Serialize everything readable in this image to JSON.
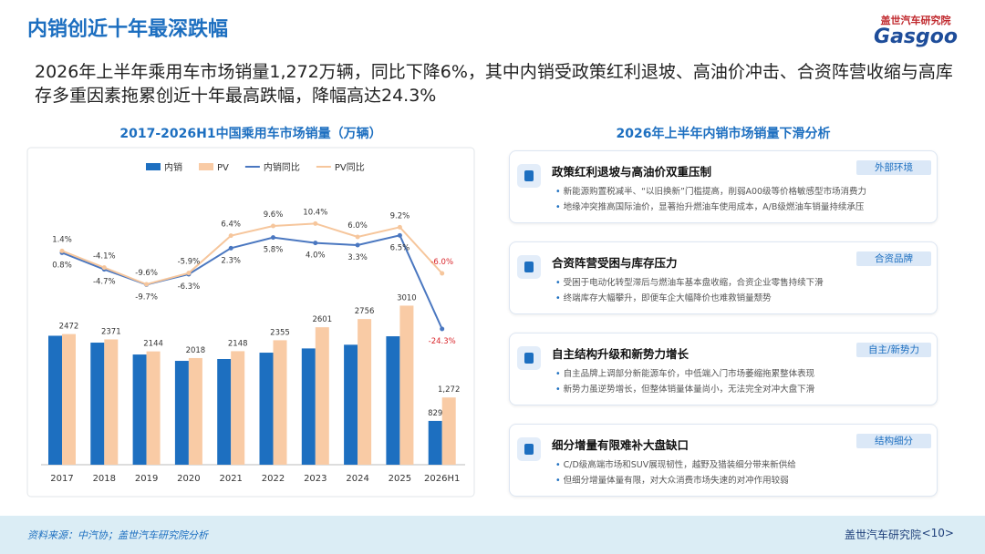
{
  "header": {
    "title": "内销创近十年最深跌幅",
    "logo_cn": "盖世汽车研究院",
    "logo_en": "Gasgoo",
    "summary": "2026年上半年乘用车市场销量1,272万辆，同比下降6%，其中内销受政策红利退坡、高油价冲击、合资阵营收缩与高库存多重因素拖累创近十年最高跌幅，降幅高达24.3%"
  },
  "chart_data": {
    "type": "bar-line",
    "title": "2017-2026H1中国乘用车市场销量（万辆）",
    "categories": [
      "2017",
      "2018",
      "2019",
      "2020",
      "2021",
      "2022",
      "2023",
      "2024",
      "2025",
      "2026H1"
    ],
    "ylim": [
      0,
      3500
    ],
    "y2lim": [
      -30,
      24
    ],
    "series": [
      {
        "name": "内销",
        "color": "#1d6fc0",
        "values": [
          2440,
          2310,
          2085,
          1965,
          2000,
          2120,
          2200,
          2270,
          2430,
          829
        ],
        "value_labels": [
          null,
          null,
          null,
          null,
          null,
          null,
          null,
          null,
          null,
          "829"
        ]
      },
      {
        "name": "PV",
        "color": "#f9cba5",
        "values": [
          2472,
          2371,
          2144,
          2018,
          2148,
          2355,
          2601,
          2756,
          3010,
          1272
        ],
        "value_labels": [
          "2472",
          "2371",
          "2144",
          "2018",
          "2148",
          "2355",
          "2601",
          "2756",
          "3010",
          "1,272"
        ]
      },
      {
        "name": "内销同比",
        "color": "#4a77c0",
        "axis": "y2",
        "values": [
          0.8,
          -4.7,
          -9.7,
          -6.3,
          2.3,
          5.8,
          4.0,
          3.3,
          6.5,
          -24.3
        ],
        "value_labels": [
          "0.8%",
          "-4.7%",
          "-9.7%",
          "-6.3%",
          "2.3%",
          "5.8%",
          "4.0%",
          "3.3%",
          "6.5%",
          "-24.3%"
        ]
      },
      {
        "name": "PV同比",
        "color": "#f6c69c",
        "axis": "y2",
        "values": [
          1.4,
          -4.1,
          -9.6,
          -5.9,
          6.4,
          9.6,
          10.4,
          6.0,
          9.2,
          -6.0
        ],
        "value_labels": [
          "1.4%",
          "-4.1%",
          "-9.6%",
          "-5.9%",
          "6.4%",
          "9.6%",
          "10.4%",
          "6.0%",
          "9.2%",
          "-6.0%"
        ]
      }
    ]
  },
  "analysis": {
    "title": "2026年上半年内销市场销量下滑分析",
    "cards": [
      {
        "title": "政策红利退坡与高油价双重压制",
        "tag": "外部环境",
        "bullets": [
          "新能源购置税减半、“以旧换新”门槛提高，削弱A00级等价格敏感型市场消费力",
          "地缘冲突推高国际油价，显著抬升燃油车使用成本，A/B级燃油车销量持续承压"
        ]
      },
      {
        "title": "合资阵营受困与库存压力",
        "tag": "合资品牌",
        "bullets": [
          "受困于电动化转型滞后与燃油车基本盘收缩，合资企业零售持续下滑",
          "终端库存大幅攀升，即便车企大幅降价也难救销量颓势"
        ]
      },
      {
        "title": "自主结构升级和新势力增长",
        "tag": "自主/新势力",
        "bullets": [
          "自主品牌上调部分新能源车价，中低端入门市场萎缩拖累整体表现",
          "新势力虽逆势增长，但整体销量体量尚小，无法完全对冲大盘下滑"
        ]
      },
      {
        "title": "细分增量有限难补大盘缺口",
        "tag": "结构细分",
        "bullets": [
          "C/D级高端市场和SUV展现韧性，越野及猎装细分带来新供给",
          "但细分增量体量有限，对大众消费市场失速的对冲作用较弱"
        ]
      }
    ]
  },
  "footer": {
    "source": "资料来源：中汽协；盖世汽车研究院分析",
    "brand": "盖世汽车研究院",
    "page": "<10>"
  }
}
